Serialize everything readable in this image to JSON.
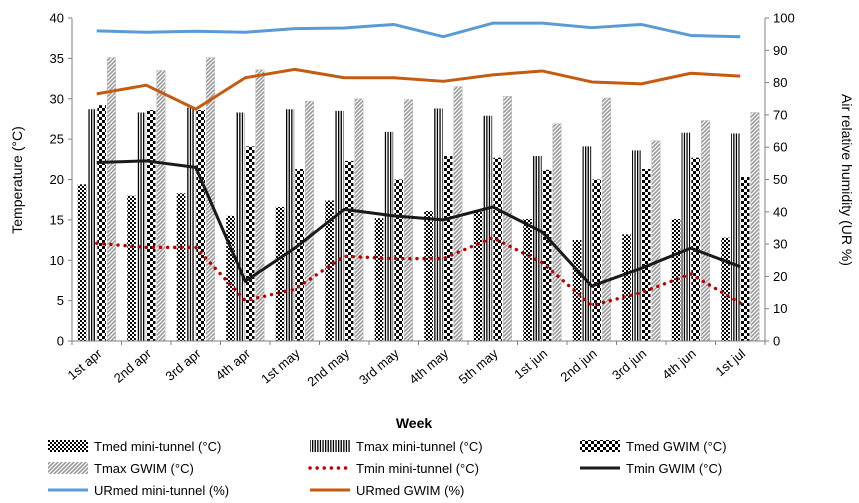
{
  "chart_data": {
    "type": "bar",
    "title": "",
    "xlabel": "Week",
    "ylabel": "Temperature (°C)",
    "y2label": "Air relative humidity (UR %)",
    "ylim": [
      0,
      40
    ],
    "y2lim": [
      0,
      100
    ],
    "yticks": [
      "0",
      "5",
      "10",
      "15",
      "20",
      "25",
      "30",
      "35",
      "40"
    ],
    "y2ticks": [
      "0",
      "10",
      "20",
      "30",
      "40",
      "50",
      "60",
      "70",
      "80",
      "90",
      "100"
    ],
    "grid": false,
    "legend_position": "bottom",
    "categories": [
      "1st apr",
      "2nd apr",
      "3rd apr",
      "4th apr",
      "1st may",
      "2nd may",
      "3rd may",
      "4th may",
      "5th may",
      "1st jun",
      "2nd jun",
      "3rd jun",
      "4th jun",
      "1st jul"
    ],
    "series": [
      {
        "name": "Tmed  mini-tunnel  (°C)",
        "kind": "bar",
        "pattern": "checker-fine",
        "axis": "left",
        "values": [
          19.4,
          18.0,
          18.3,
          15.5,
          16.6,
          17.4,
          15.2,
          16.1,
          16.2,
          15.1,
          12.5,
          13.2,
          15.1,
          12.8
        ]
      },
      {
        "name": "Tmax mini-tunnel  (°C)",
        "kind": "bar",
        "pattern": "vertical-lines",
        "axis": "left",
        "values": [
          28.7,
          28.3,
          28.9,
          28.3,
          28.7,
          28.5,
          25.9,
          28.8,
          27.9,
          22.9,
          24.1,
          23.6,
          25.8,
          25.7
        ]
      },
      {
        "name": "Tmed GWIM (°C)",
        "kind": "bar",
        "pattern": "checker-bold",
        "axis": "left",
        "values": [
          29.2,
          28.6,
          28.6,
          24.1,
          21.3,
          22.3,
          20.0,
          22.9,
          22.7,
          21.2,
          20.0,
          21.3,
          22.7,
          20.3
        ]
      },
      {
        "name": "Tmax GWIM (°C)",
        "kind": "bar",
        "pattern": "diagonal-gray",
        "axis": "left",
        "values": [
          35.1,
          33.5,
          35.1,
          33.6,
          29.7,
          30.0,
          29.9,
          31.5,
          30.3,
          26.9,
          30.1,
          24.8,
          27.3,
          28.3
        ]
      },
      {
        "name": "Tmin mini-tunnel (°C)",
        "kind": "line",
        "style": "dotted",
        "color": "#c00000",
        "axis": "left",
        "values": [
          12.1,
          11.6,
          11.6,
          5.0,
          6.4,
          10.5,
          10.2,
          10.2,
          12.8,
          9.7,
          4.4,
          6.0,
          8.3,
          4.7
        ]
      },
      {
        "name": "Tmin GWIM (°C)",
        "kind": "line",
        "style": "solid",
        "color": "#1a1a1a",
        "axis": "left",
        "values": [
          22.1,
          22.3,
          21.5,
          7.4,
          11.5,
          16.3,
          15.5,
          15.0,
          16.6,
          13.5,
          6.8,
          9.0,
          11.5,
          9.2
        ]
      },
      {
        "name": "URmed mini-tunnel   (%)",
        "kind": "line",
        "style": "solid",
        "color": "#5b9bd5",
        "axis": "right",
        "values": [
          96.0,
          95.6,
          95.9,
          95.6,
          96.7,
          96.9,
          98.0,
          94.2,
          98.4,
          98.4,
          97.0,
          98.0,
          94.6,
          94.2
        ]
      },
      {
        "name": "URmed GWIM (%)",
        "kind": "line",
        "style": "solid",
        "color": "#c55a11",
        "axis": "right",
        "values": [
          76.5,
          79.2,
          71.8,
          81.5,
          84.1,
          81.5,
          81.5,
          80.4,
          82.4,
          83.6,
          80.2,
          79.6,
          82.9,
          82.0
        ]
      }
    ]
  }
}
